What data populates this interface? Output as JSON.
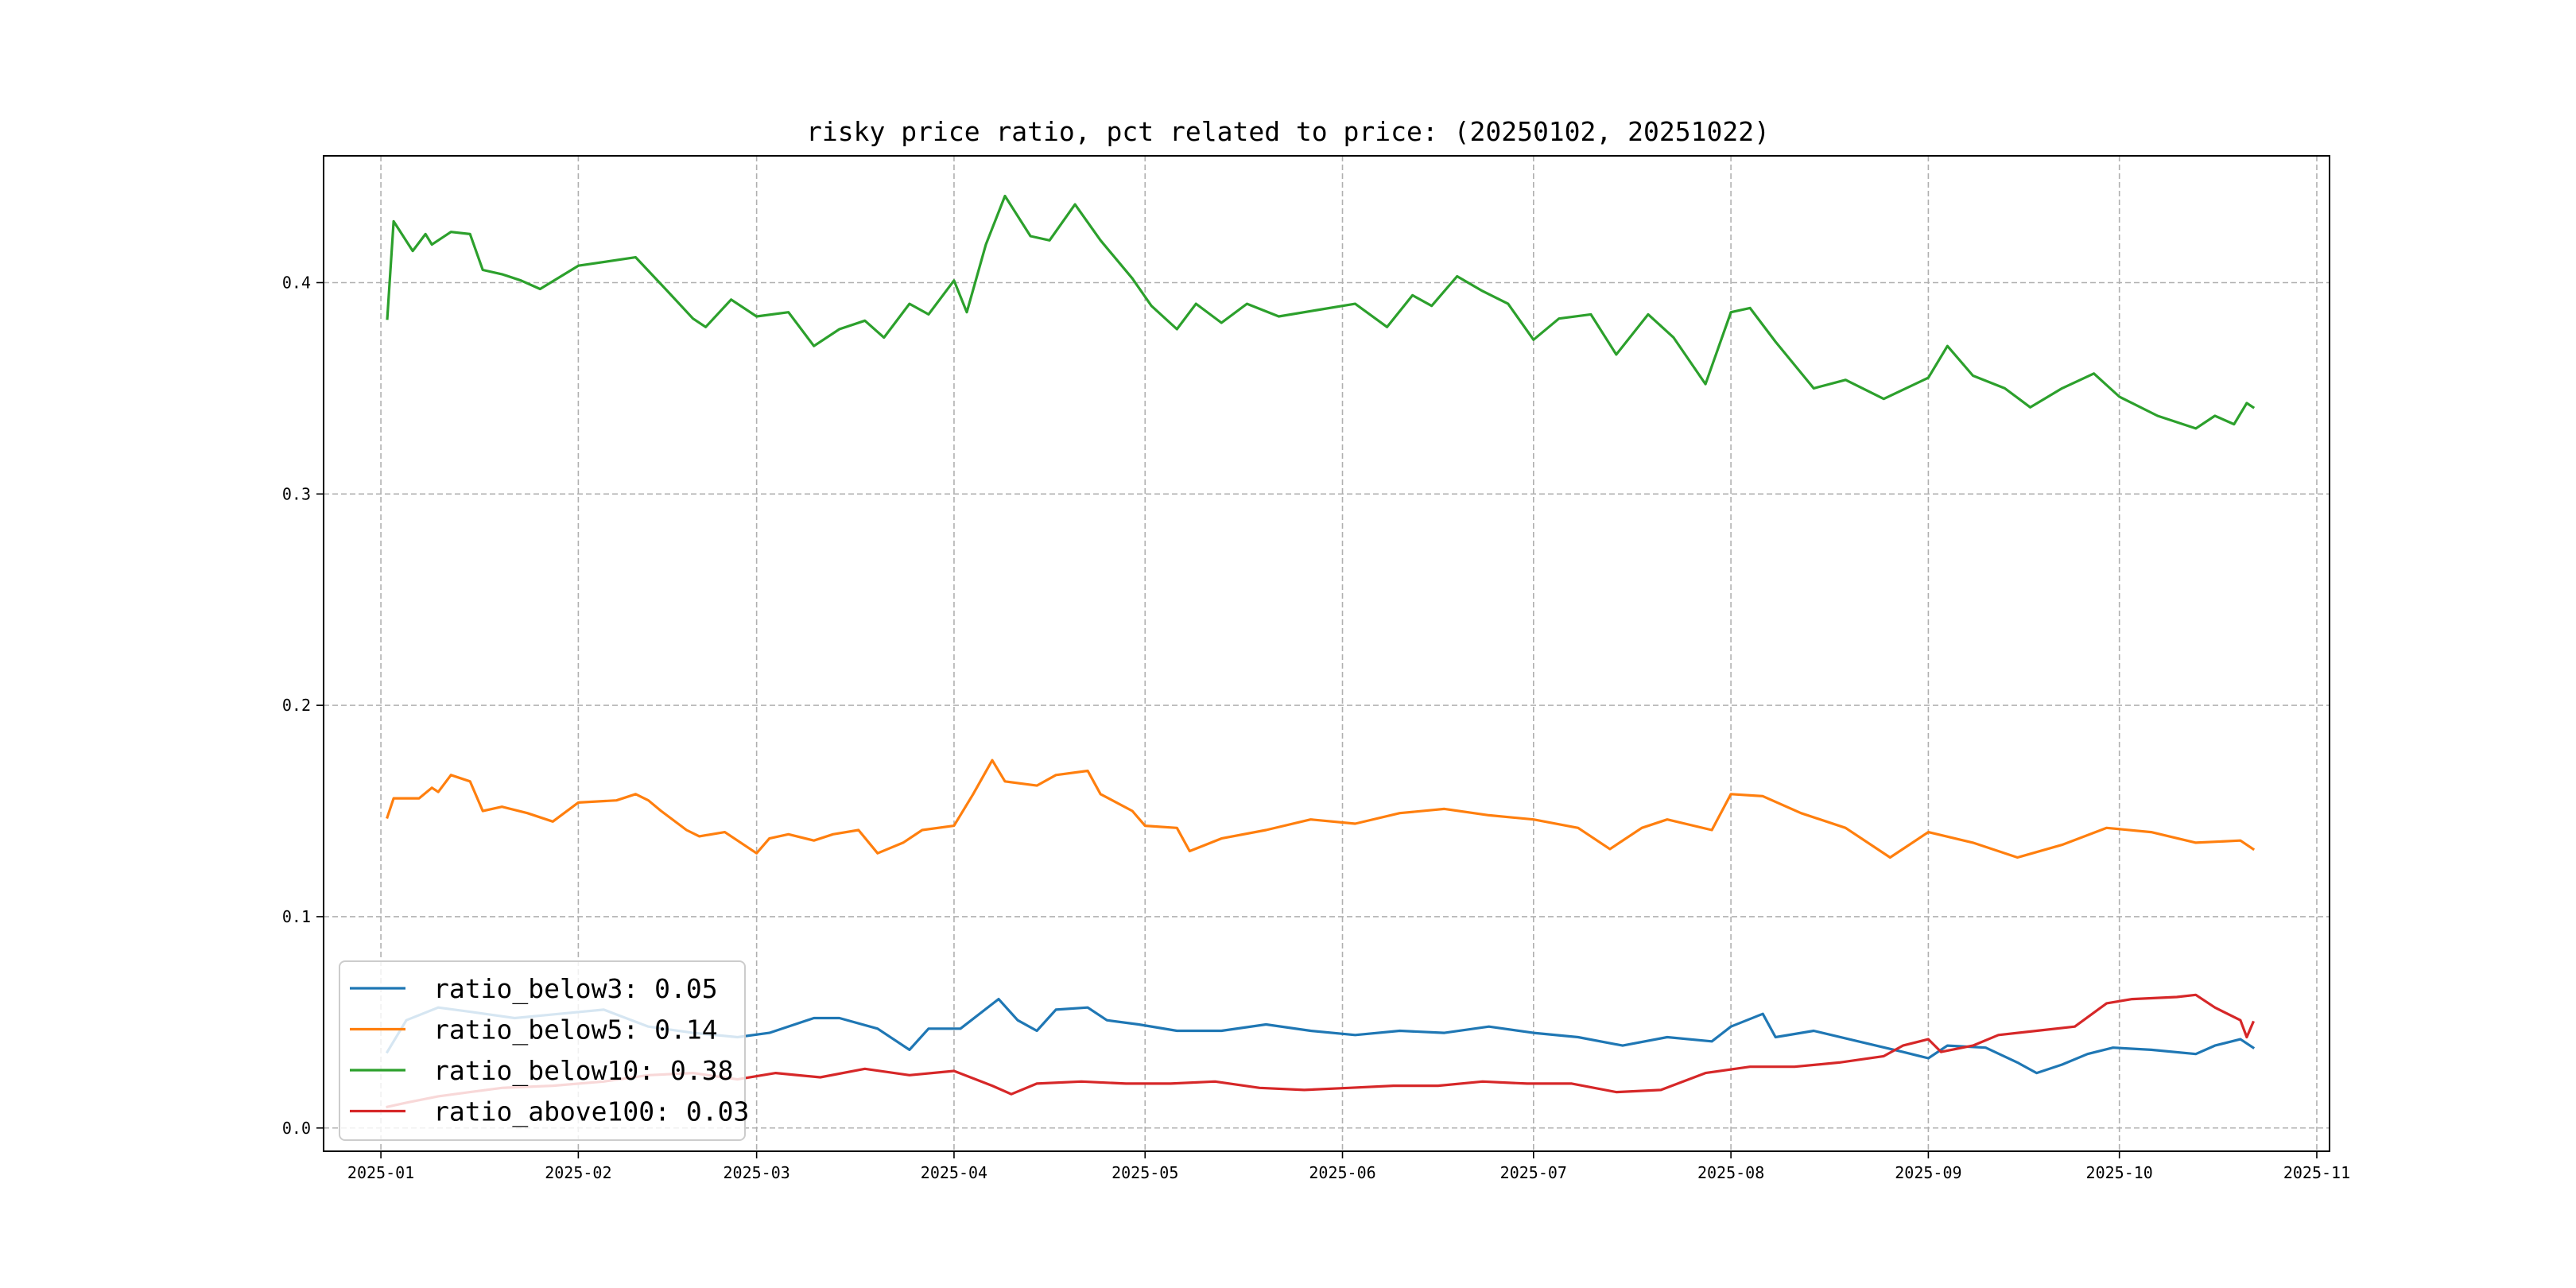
{
  "chart_data": {
    "type": "line",
    "title": "risky price ratio, pct related to price: (20250102, 20251022)",
    "xlabel": "",
    "ylabel": "",
    "x_axis_type": "date",
    "xlim": [
      "2024-12-23",
      "2025-11-03"
    ],
    "ylim": [
      -0.011,
      0.46
    ],
    "x_ticks": [
      "2025-01-01",
      "2025-02-01",
      "2025-03-01",
      "2025-04-01",
      "2025-05-01",
      "2025-06-01",
      "2025-07-01",
      "2025-08-01",
      "2025-09-01",
      "2025-10-01",
      "2025-11-01"
    ],
    "x_tick_labels": [
      "2025-01",
      "2025-02",
      "2025-03",
      "2025-04",
      "2025-05",
      "2025-06",
      "2025-07",
      "2025-08",
      "2025-09",
      "2025-10",
      "2025-11"
    ],
    "y_ticks": [
      0.0,
      0.1,
      0.2,
      0.3,
      0.4
    ],
    "y_tick_labels": [
      "0.0",
      "0.1",
      "0.2",
      "0.3",
      "0.4"
    ],
    "grid": true,
    "legend_position": "lower-left",
    "series": [
      {
        "name": "ratio_below3: 0.05",
        "color": "#1f77b4",
        "points": [
          [
            "2025-01-02",
            0.036
          ],
          [
            "2025-01-05",
            0.051
          ],
          [
            "2025-01-10",
            0.057
          ],
          [
            "2025-01-15",
            0.055
          ],
          [
            "2025-01-22",
            0.052
          ],
          [
            "2025-01-29",
            0.054
          ],
          [
            "2025-02-05",
            0.056
          ],
          [
            "2025-02-12",
            0.048
          ],
          [
            "2025-02-19",
            0.045
          ],
          [
            "2025-02-26",
            0.043
          ],
          [
            "2025-03-03",
            0.045
          ],
          [
            "2025-03-10",
            0.052
          ],
          [
            "2025-03-14",
            0.052
          ],
          [
            "2025-03-20",
            0.047
          ],
          [
            "2025-03-25",
            0.037
          ],
          [
            "2025-03-28",
            0.047
          ],
          [
            "2025-04-02",
            0.047
          ],
          [
            "2025-04-08",
            0.061
          ],
          [
            "2025-04-11",
            0.051
          ],
          [
            "2025-04-14",
            0.046
          ],
          [
            "2025-04-17",
            0.056
          ],
          [
            "2025-04-22",
            0.057
          ],
          [
            "2025-04-25",
            0.051
          ],
          [
            "2025-04-30",
            0.049
          ],
          [
            "2025-05-06",
            0.046
          ],
          [
            "2025-05-13",
            0.046
          ],
          [
            "2025-05-20",
            0.049
          ],
          [
            "2025-05-27",
            0.046
          ],
          [
            "2025-06-03",
            0.044
          ],
          [
            "2025-06-10",
            0.046
          ],
          [
            "2025-06-17",
            0.045
          ],
          [
            "2025-06-24",
            0.048
          ],
          [
            "2025-07-01",
            0.045
          ],
          [
            "2025-07-08",
            0.043
          ],
          [
            "2025-07-15",
            0.039
          ],
          [
            "2025-07-22",
            0.043
          ],
          [
            "2025-07-29",
            0.041
          ],
          [
            "2025-08-01",
            0.048
          ],
          [
            "2025-08-06",
            0.054
          ],
          [
            "2025-08-08",
            0.043
          ],
          [
            "2025-08-14",
            0.046
          ],
          [
            "2025-08-21",
            0.041
          ],
          [
            "2025-08-28",
            0.036
          ],
          [
            "2025-09-01",
            0.033
          ],
          [
            "2025-09-04",
            0.039
          ],
          [
            "2025-09-10",
            0.038
          ],
          [
            "2025-09-15",
            0.031
          ],
          [
            "2025-09-18",
            0.026
          ],
          [
            "2025-09-22",
            0.03
          ],
          [
            "2025-09-26",
            0.035
          ],
          [
            "2025-09-30",
            0.038
          ],
          [
            "2025-10-06",
            0.037
          ],
          [
            "2025-10-13",
            0.035
          ],
          [
            "2025-10-16",
            0.039
          ],
          [
            "2025-10-20",
            0.042
          ],
          [
            "2025-10-22",
            0.038
          ]
        ]
      },
      {
        "name": "ratio_below5: 0.14",
        "color": "#ff7f0e",
        "points": [
          [
            "2025-01-02",
            0.147
          ],
          [
            "2025-01-03",
            0.156
          ],
          [
            "2025-01-07",
            0.156
          ],
          [
            "2025-01-09",
            0.161
          ],
          [
            "2025-01-10",
            0.159
          ],
          [
            "2025-01-12",
            0.167
          ],
          [
            "2025-01-15",
            0.164
          ],
          [
            "2025-01-17",
            0.15
          ],
          [
            "2025-01-20",
            0.152
          ],
          [
            "2025-01-24",
            0.149
          ],
          [
            "2025-01-28",
            0.145
          ],
          [
            "2025-02-01",
            0.154
          ],
          [
            "2025-02-07",
            0.155
          ],
          [
            "2025-02-10",
            0.158
          ],
          [
            "2025-02-12",
            0.155
          ],
          [
            "2025-02-14",
            0.15
          ],
          [
            "2025-02-18",
            0.141
          ],
          [
            "2025-02-20",
            0.138
          ],
          [
            "2025-02-24",
            0.14
          ],
          [
            "2025-02-26",
            0.136
          ],
          [
            "2025-03-01",
            0.13
          ],
          [
            "2025-03-03",
            0.137
          ],
          [
            "2025-03-06",
            0.139
          ],
          [
            "2025-03-10",
            0.136
          ],
          [
            "2025-03-13",
            0.139
          ],
          [
            "2025-03-17",
            0.141
          ],
          [
            "2025-03-20",
            0.13
          ],
          [
            "2025-03-24",
            0.135
          ],
          [
            "2025-03-27",
            0.141
          ],
          [
            "2025-04-01",
            0.143
          ],
          [
            "2025-04-04",
            0.158
          ],
          [
            "2025-04-07",
            0.174
          ],
          [
            "2025-04-09",
            0.164
          ],
          [
            "2025-04-14",
            0.162
          ],
          [
            "2025-04-17",
            0.167
          ],
          [
            "2025-04-22",
            0.169
          ],
          [
            "2025-04-24",
            0.158
          ],
          [
            "2025-04-29",
            0.15
          ],
          [
            "2025-05-01",
            0.143
          ],
          [
            "2025-05-06",
            0.142
          ],
          [
            "2025-05-08",
            0.131
          ],
          [
            "2025-05-13",
            0.137
          ],
          [
            "2025-05-20",
            0.141
          ],
          [
            "2025-05-27",
            0.146
          ],
          [
            "2025-06-03",
            0.144
          ],
          [
            "2025-06-10",
            0.149
          ],
          [
            "2025-06-17",
            0.151
          ],
          [
            "2025-06-24",
            0.148
          ],
          [
            "2025-07-01",
            0.146
          ],
          [
            "2025-07-08",
            0.142
          ],
          [
            "2025-07-13",
            0.132
          ],
          [
            "2025-07-18",
            0.142
          ],
          [
            "2025-07-22",
            0.146
          ],
          [
            "2025-07-29",
            0.141
          ],
          [
            "2025-08-01",
            0.158
          ],
          [
            "2025-08-06",
            0.157
          ],
          [
            "2025-08-12",
            0.149
          ],
          [
            "2025-08-19",
            0.142
          ],
          [
            "2025-08-26",
            0.128
          ],
          [
            "2025-09-01",
            0.14
          ],
          [
            "2025-09-08",
            0.135
          ],
          [
            "2025-09-15",
            0.128
          ],
          [
            "2025-09-22",
            0.134
          ],
          [
            "2025-09-29",
            0.142
          ],
          [
            "2025-10-06",
            0.14
          ],
          [
            "2025-10-13",
            0.135
          ],
          [
            "2025-10-20",
            0.136
          ],
          [
            "2025-10-22",
            0.132
          ]
        ]
      },
      {
        "name": "ratio_below10: 0.38",
        "color": "#2ca02c",
        "points": [
          [
            "2025-01-02",
            0.383
          ],
          [
            "2025-01-03",
            0.429
          ],
          [
            "2025-01-06",
            0.415
          ],
          [
            "2025-01-08",
            0.423
          ],
          [
            "2025-01-09",
            0.418
          ],
          [
            "2025-01-12",
            0.424
          ],
          [
            "2025-01-15",
            0.423
          ],
          [
            "2025-01-17",
            0.406
          ],
          [
            "2025-01-20",
            0.404
          ],
          [
            "2025-01-23",
            0.401
          ],
          [
            "2025-01-26",
            0.397
          ],
          [
            "2025-02-01",
            0.408
          ],
          [
            "2025-02-10",
            0.412
          ],
          [
            "2025-02-15",
            0.396
          ],
          [
            "2025-02-19",
            0.383
          ],
          [
            "2025-02-21",
            0.379
          ],
          [
            "2025-02-25",
            0.392
          ],
          [
            "2025-03-01",
            0.384
          ],
          [
            "2025-03-06",
            0.386
          ],
          [
            "2025-03-10",
            0.37
          ],
          [
            "2025-03-14",
            0.378
          ],
          [
            "2025-03-18",
            0.382
          ],
          [
            "2025-03-21",
            0.374
          ],
          [
            "2025-03-25",
            0.39
          ],
          [
            "2025-03-28",
            0.385
          ],
          [
            "2025-04-01",
            0.401
          ],
          [
            "2025-04-03",
            0.386
          ],
          [
            "2025-04-06",
            0.418
          ],
          [
            "2025-04-09",
            0.441
          ],
          [
            "2025-04-13",
            0.422
          ],
          [
            "2025-04-16",
            0.42
          ],
          [
            "2025-04-20",
            0.437
          ],
          [
            "2025-04-24",
            0.42
          ],
          [
            "2025-04-29",
            0.402
          ],
          [
            "2025-05-02",
            0.389
          ],
          [
            "2025-05-06",
            0.378
          ],
          [
            "2025-05-09",
            0.39
          ],
          [
            "2025-05-13",
            0.381
          ],
          [
            "2025-05-17",
            0.39
          ],
          [
            "2025-05-22",
            0.384
          ],
          [
            "2025-05-28",
            0.387
          ],
          [
            "2025-06-03",
            0.39
          ],
          [
            "2025-06-08",
            0.379
          ],
          [
            "2025-06-12",
            0.394
          ],
          [
            "2025-06-15",
            0.389
          ],
          [
            "2025-06-19",
            0.403
          ],
          [
            "2025-06-23",
            0.396
          ],
          [
            "2025-06-27",
            0.39
          ],
          [
            "2025-07-01",
            0.373
          ],
          [
            "2025-07-05",
            0.383
          ],
          [
            "2025-07-10",
            0.385
          ],
          [
            "2025-07-14",
            0.366
          ],
          [
            "2025-07-19",
            0.385
          ],
          [
            "2025-07-23",
            0.374
          ],
          [
            "2025-07-28",
            0.352
          ],
          [
            "2025-08-01",
            0.386
          ],
          [
            "2025-08-04",
            0.388
          ],
          [
            "2025-08-08",
            0.372
          ],
          [
            "2025-08-14",
            0.35
          ],
          [
            "2025-08-19",
            0.354
          ],
          [
            "2025-08-25",
            0.345
          ],
          [
            "2025-09-01",
            0.355
          ],
          [
            "2025-09-04",
            0.37
          ],
          [
            "2025-09-08",
            0.356
          ],
          [
            "2025-09-13",
            0.35
          ],
          [
            "2025-09-17",
            0.341
          ],
          [
            "2025-09-22",
            0.35
          ],
          [
            "2025-09-27",
            0.357
          ],
          [
            "2025-10-01",
            0.346
          ],
          [
            "2025-10-07",
            0.337
          ],
          [
            "2025-10-13",
            0.331
          ],
          [
            "2025-10-16",
            0.337
          ],
          [
            "2025-10-19",
            0.333
          ],
          [
            "2025-10-21",
            0.343
          ],
          [
            "2025-10-22",
            0.341
          ]
        ]
      },
      {
        "name": "ratio_above100: 0.03",
        "color": "#d62728",
        "points": [
          [
            "2025-01-02",
            0.01
          ],
          [
            "2025-01-05",
            0.012
          ],
          [
            "2025-01-10",
            0.015
          ],
          [
            "2025-01-15",
            0.017
          ],
          [
            "2025-01-20",
            0.019
          ],
          [
            "2025-01-28",
            0.02
          ],
          [
            "2025-02-05",
            0.022
          ],
          [
            "2025-02-12",
            0.025
          ],
          [
            "2025-02-19",
            0.026
          ],
          [
            "2025-02-26",
            0.023
          ],
          [
            "2025-03-04",
            0.026
          ],
          [
            "2025-03-11",
            0.024
          ],
          [
            "2025-03-18",
            0.028
          ],
          [
            "2025-03-25",
            0.025
          ],
          [
            "2025-04-01",
            0.027
          ],
          [
            "2025-04-07",
            0.02
          ],
          [
            "2025-04-10",
            0.016
          ],
          [
            "2025-04-14",
            0.021
          ],
          [
            "2025-04-21",
            0.022
          ],
          [
            "2025-04-28",
            0.021
          ],
          [
            "2025-05-05",
            0.021
          ],
          [
            "2025-05-12",
            0.022
          ],
          [
            "2025-05-19",
            0.019
          ],
          [
            "2025-05-26",
            0.018
          ],
          [
            "2025-06-02",
            0.019
          ],
          [
            "2025-06-09",
            0.02
          ],
          [
            "2025-06-16",
            0.02
          ],
          [
            "2025-06-23",
            0.022
          ],
          [
            "2025-06-30",
            0.021
          ],
          [
            "2025-07-07",
            0.021
          ],
          [
            "2025-07-14",
            0.017
          ],
          [
            "2025-07-21",
            0.018
          ],
          [
            "2025-07-28",
            0.026
          ],
          [
            "2025-08-04",
            0.029
          ],
          [
            "2025-08-11",
            0.029
          ],
          [
            "2025-08-18",
            0.031
          ],
          [
            "2025-08-25",
            0.034
          ],
          [
            "2025-08-28",
            0.039
          ],
          [
            "2025-09-01",
            0.042
          ],
          [
            "2025-09-03",
            0.036
          ],
          [
            "2025-09-08",
            0.039
          ],
          [
            "2025-09-12",
            0.044
          ],
          [
            "2025-09-18",
            0.046
          ],
          [
            "2025-09-24",
            0.048
          ],
          [
            "2025-09-29",
            0.059
          ],
          [
            "2025-10-03",
            0.061
          ],
          [
            "2025-10-10",
            0.062
          ],
          [
            "2025-10-13",
            0.063
          ],
          [
            "2025-10-16",
            0.057
          ],
          [
            "2025-10-20",
            0.051
          ],
          [
            "2025-10-21",
            0.043
          ],
          [
            "2025-10-22",
            0.05
          ]
        ]
      }
    ]
  }
}
